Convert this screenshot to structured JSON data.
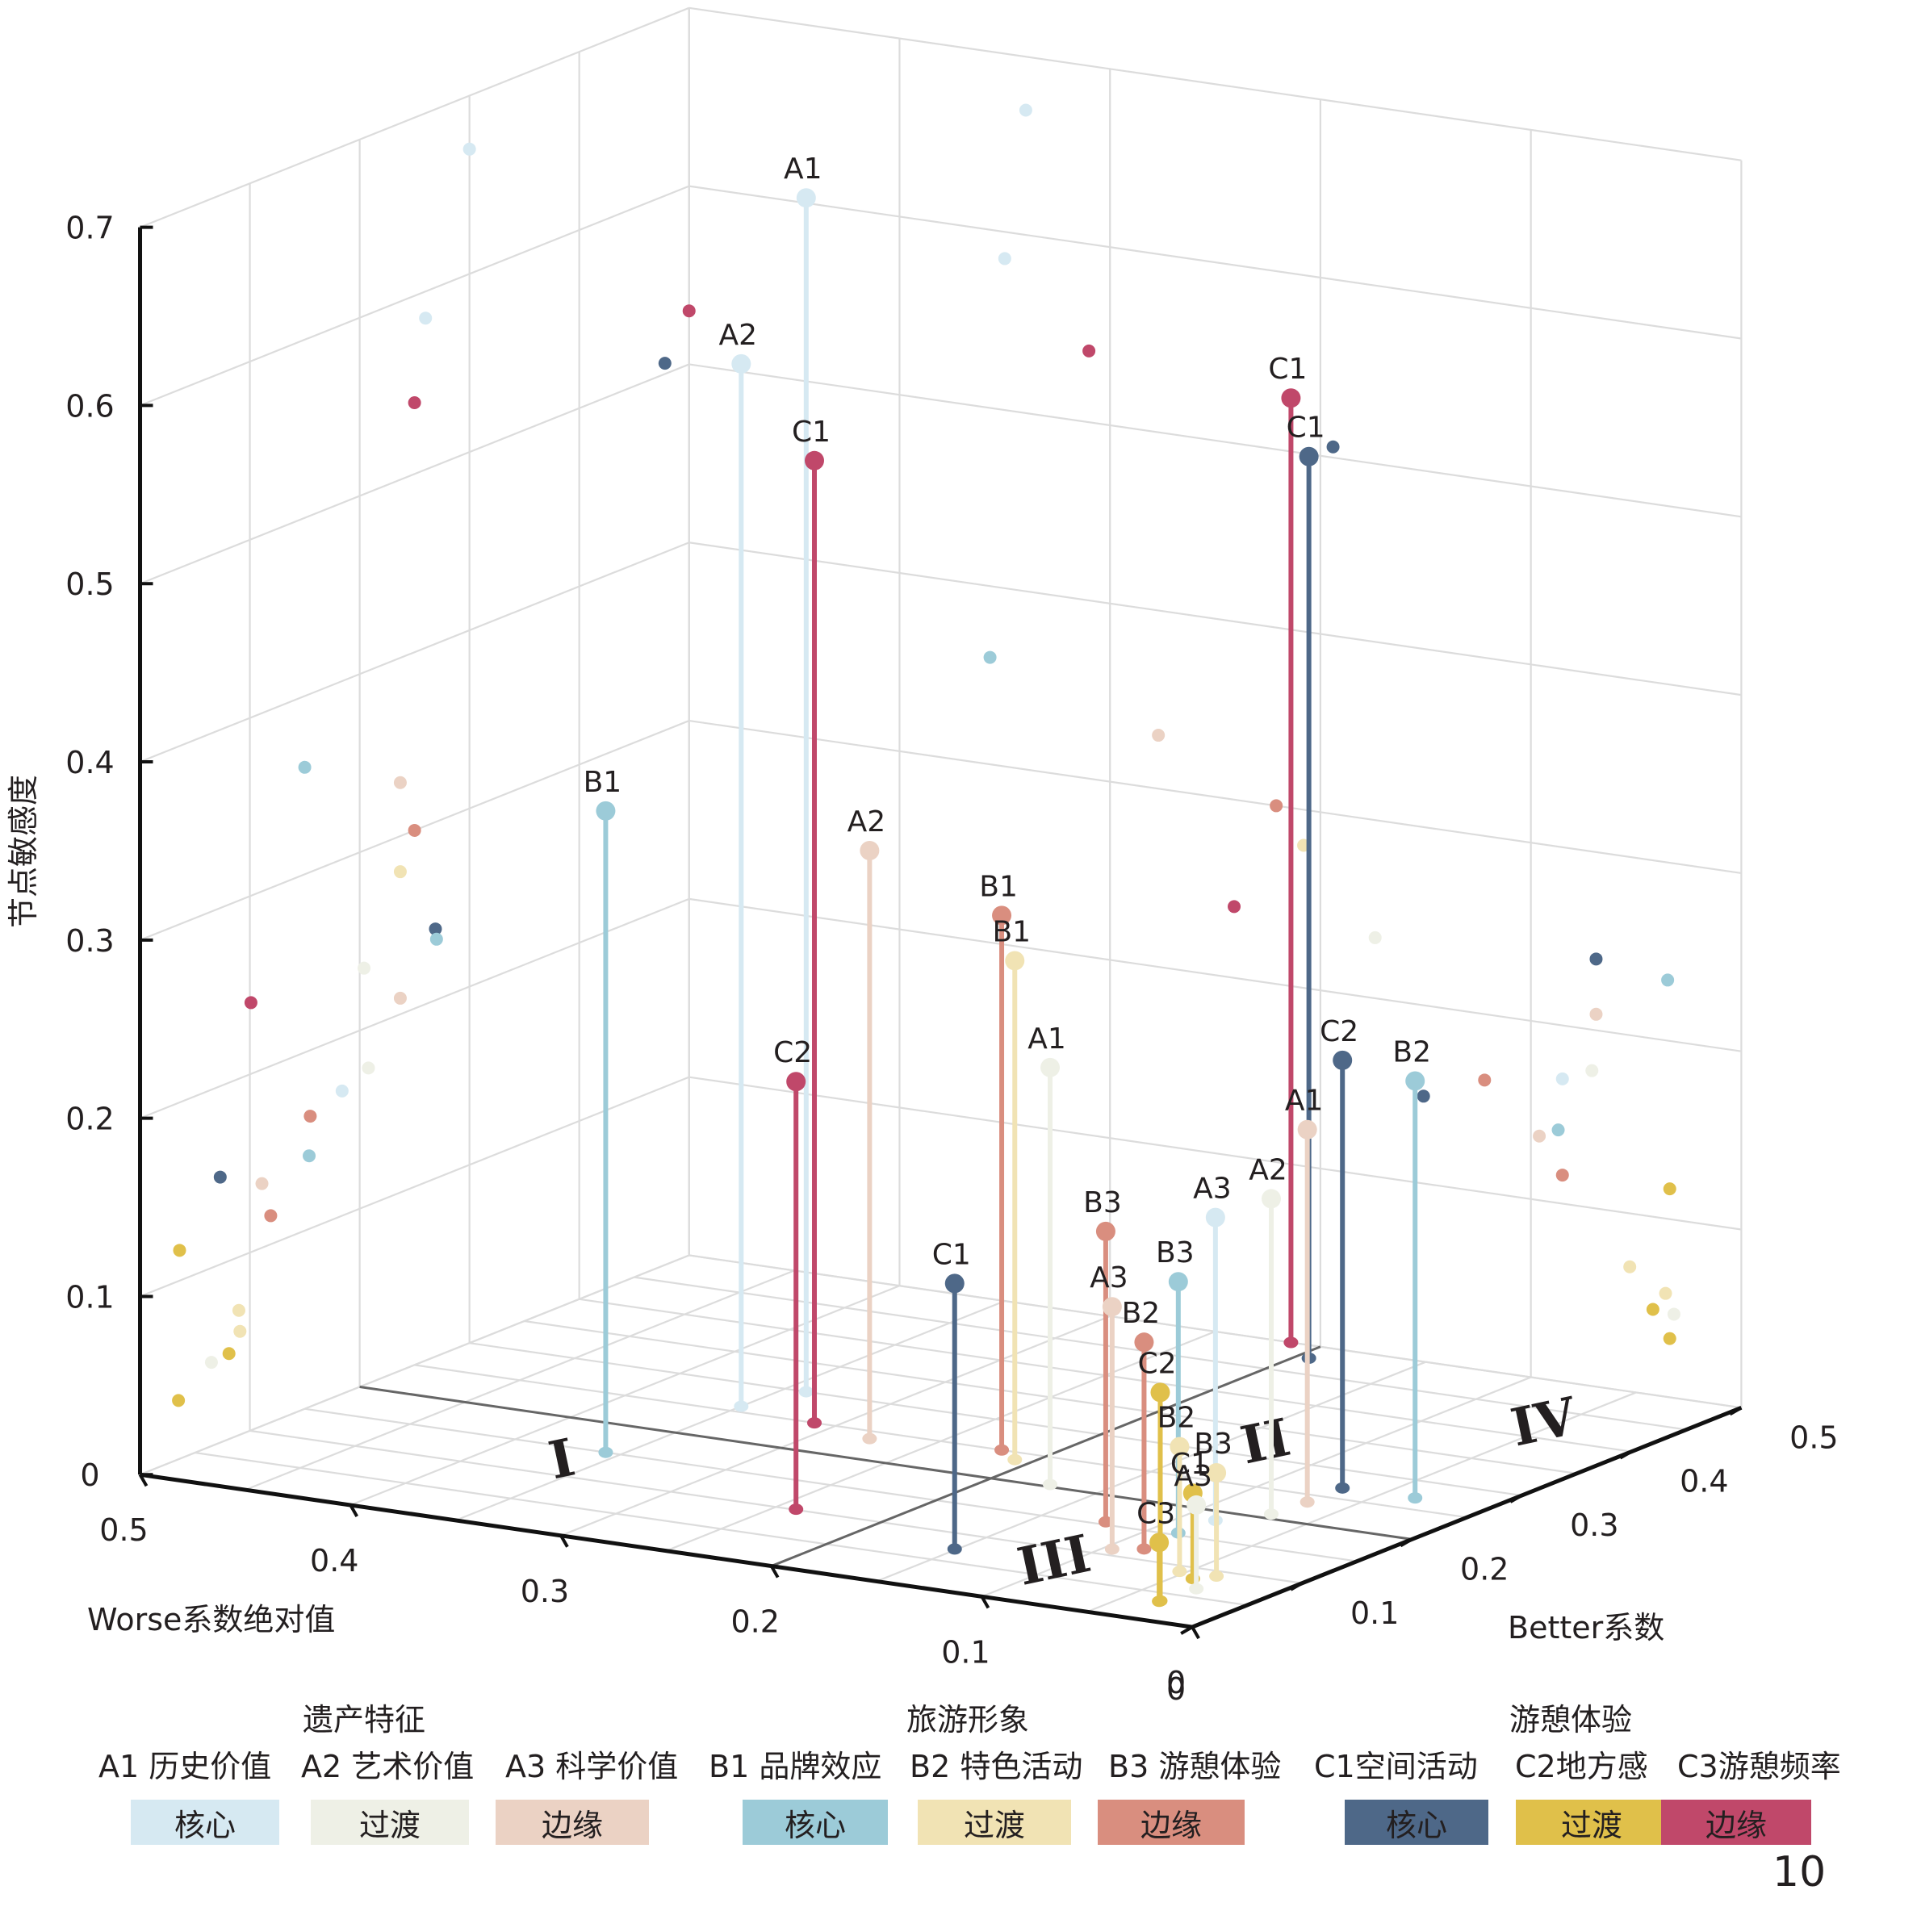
{
  "chart_data": {
    "type": "scatter",
    "subtype": "3d-stem",
    "title": "",
    "xlabel": "Worse系数绝对值",
    "ylabel": "Better系数",
    "zlabel": "节点敏感度",
    "xlim": [
      0,
      0.5
    ],
    "ylim": [
      0,
      0.5
    ],
    "zlim": [
      0,
      0.7
    ],
    "x_ticks": [
      "0",
      "0.1",
      "0.2",
      "0.3",
      "0.4",
      "0.5"
    ],
    "y_ticks": [
      "0",
      "0.1",
      "0.2",
      "0.3",
      "0.4",
      "0.5"
    ],
    "z_ticks": [
      "0",
      "0.1",
      "0.2",
      "0.3",
      "0.4",
      "0.5",
      "0.6",
      "0.7"
    ],
    "grid": true,
    "quadrant_labels": [
      "I",
      "II",
      "III",
      "IV"
    ],
    "quadrant_split": {
      "worse": 0.2,
      "better": 0.2
    },
    "series": [
      {
        "name": "遗产特征-核心",
        "color": "#d6e9f2",
        "points": [
          {
            "label": "A1",
            "worse": 0.34,
            "better": 0.3,
            "sensitivity": 0.67
          },
          {
            "label": "A2",
            "worse": 0.35,
            "better": 0.26,
            "sensitivity": 0.585
          },
          {
            "label": "A3",
            "worse": 0.085,
            "better": 0.184,
            "sensitivity": 0.17
          }
        ]
      },
      {
        "name": "遗产特征-过渡",
        "color": "#eef0e6",
        "points": [
          {
            "label": "A1",
            "worse": 0.174,
            "better": 0.204,
            "sensitivity": 0.234
          },
          {
            "label": "A2",
            "worse": 0.071,
            "better": 0.208,
            "sensitivity": 0.177
          },
          {
            "label": "A3",
            "worse": 0.032,
            "better": 0.065,
            "sensitivity": 0.047
          }
        ]
      },
      {
        "name": "遗产特征-边缘",
        "color": "#ebd2c4",
        "points": [
          {
            "label": "A1",
            "worse": 0.069,
            "better": 0.237,
            "sensitivity": 0.209
          },
          {
            "label": "A2",
            "worse": 0.277,
            "better": 0.237,
            "sensitivity": 0.33
          },
          {
            "label": "A3",
            "worse": 0.096,
            "better": 0.111,
            "sensitivity": 0.136
          }
        ]
      },
      {
        "name": "旅游形象-核心",
        "color": "#9ccbd8",
        "points": [
          {
            "label": "B1",
            "worse": 0.357,
            "better": 0.15,
            "sensitivity": 0.36
          },
          {
            "label": "B2",
            "worse": 0.035,
            "better": 0.27,
            "sensitivity": 0.234
          },
          {
            "label": "B3",
            "worse": 0.087,
            "better": 0.154,
            "sensitivity": 0.141
          }
        ]
      },
      {
        "name": "旅游形象-过渡",
        "color": "#f1e3b4",
        "points": [
          {
            "label": "B1",
            "worse": 0.208,
            "better": 0.237,
            "sensitivity": 0.28
          },
          {
            "label": "B2",
            "worse": 0.053,
            "better": 0.09,
            "sensitivity": 0.07
          },
          {
            "label": "B3",
            "worse": 0.036,
            "better": 0.091,
            "sensitivity": 0.058
          }
        ]
      },
      {
        "name": "旅游形象-边缘",
        "color": "#d98e7f",
        "points": [
          {
            "label": "B1",
            "worse": 0.221,
            "better": 0.25,
            "sensitivity": 0.3
          },
          {
            "label": "B2",
            "worse": 0.085,
            "better": 0.119,
            "sensitivity": 0.116
          },
          {
            "label": "B3",
            "worse": 0.122,
            "better": 0.155,
            "sensitivity": 0.163
          }
        ]
      },
      {
        "name": "游憩体验-核心",
        "color": "#4e6888",
        "points": [
          {
            "label": "C1",
            "worse": 0.194,
            "better": 0.478,
            "sensitivity": 0.506
          },
          {
            "label": "C1",
            "worse": 0.151,
            "better": 0.073,
            "sensitivity": 0.149
          },
          {
            "label": "C2",
            "worse": 0.069,
            "better": 0.269,
            "sensitivity": 0.24
          }
        ]
      },
      {
        "name": "游憩体验-过渡",
        "color": "#e0c04a",
        "points": [
          {
            "label": "C1",
            "worse": 0.042,
            "better": 0.081,
            "sensitivity": 0.048
          },
          {
            "label": "C2",
            "worse": 0.034,
            "better": 0.036,
            "sensitivity": 0.117
          },
          {
            "label": "C3",
            "worse": 0.034,
            "better": 0.035,
            "sensitivity": 0.033
          }
        ]
      },
      {
        "name": "游憩体验-边缘",
        "color": "#c0486a",
        "points": [
          {
            "label": "C1",
            "worse": 0.31,
            "better": 0.25,
            "sensitivity": 0.54
          },
          {
            "label": "C1",
            "worse": 0.214,
            "better": 0.5,
            "sensitivity": 0.53
          },
          {
            "label": "C2",
            "worse": 0.241,
            "better": 0.101,
            "sensitivity": 0.24
          }
        ]
      }
    ]
  },
  "legend": {
    "groups": [
      {
        "title": "遗产特征",
        "items": [
          "A1 历史价值",
          "A2 艺术价值",
          "A3 科学价值"
        ],
        "swatches": [
          {
            "label": "核心",
            "color": "#d6e9f2"
          },
          {
            "label": "过渡",
            "color": "#eef0e6"
          },
          {
            "label": "边缘",
            "color": "#ebd2c4"
          }
        ]
      },
      {
        "title": "旅游形象",
        "items": [
          "B1 品牌效应",
          "B2 特色活动",
          "B3 游憩体验"
        ],
        "swatches": [
          {
            "label": "核心",
            "color": "#9ccbd8"
          },
          {
            "label": "过渡",
            "color": "#f1e3b4"
          },
          {
            "label": "边缘",
            "color": "#d98e7f"
          }
        ]
      },
      {
        "title": "游憩体验",
        "items": [
          "C1空间活动",
          "C2地方感",
          "C3游憩频率"
        ],
        "swatches": [
          {
            "label": "核心",
            "color": "#4e6888"
          },
          {
            "label": "过渡",
            "color": "#e0c04a"
          },
          {
            "label": "边缘",
            "color": "#c0486a"
          }
        ]
      }
    ]
  },
  "figure_number": "10"
}
